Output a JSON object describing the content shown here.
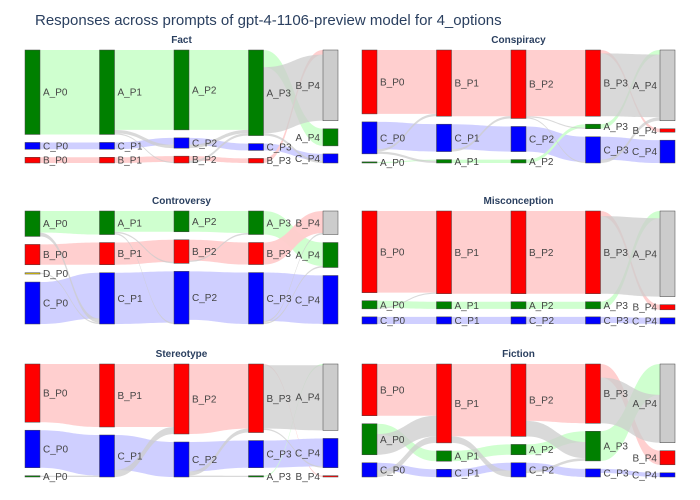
{
  "figure": {
    "title": "Responses across prompts of gpt-4-1106-preview model for 4_options"
  },
  "colors": {
    "A": "#008000",
    "B": "#ff0000",
    "C": "#0000ff",
    "D": "#e6c800",
    "link_A": "#ccffcc",
    "link_B": "#ffcccc",
    "link_C": "#ccccff",
    "link_grey": "#cccccc",
    "node_grey": "#cccccc"
  },
  "chart_data": [
    {
      "type": "sankey",
      "title": "Fact",
      "stages": [
        "P0",
        "P1",
        "P2",
        "P3",
        "P4"
      ],
      "nodes": [
        [
          {
            "label": "A_P0",
            "v": 74,
            "c": "A"
          },
          {
            "label": "C_P0",
            "v": 6,
            "c": "C"
          },
          {
            "label": "B_P0",
            "v": 5,
            "c": "B"
          }
        ],
        [
          {
            "label": "A_P1",
            "v": 74,
            "c": "A"
          },
          {
            "label": "C_P1",
            "v": 6,
            "c": "C"
          },
          {
            "label": "B_P1",
            "v": 5,
            "c": "B"
          }
        ],
        [
          {
            "label": "A_P2",
            "v": 70,
            "c": "A"
          },
          {
            "label": "C_P2",
            "v": 9,
            "c": "C"
          },
          {
            "label": "B_P2",
            "v": 6,
            "c": "B"
          }
        ],
        [
          {
            "label": "A_P3",
            "v": 75,
            "c": "A"
          },
          {
            "label": "C_P3",
            "v": 6,
            "c": "C"
          },
          {
            "label": "B_P3",
            "v": 4,
            "c": "B"
          }
        ],
        [
          {
            "label": "B_P4",
            "v": 62,
            "c": "B"
          },
          {
            "label": "A_P4",
            "v": 15,
            "c": "A"
          },
          {
            "label": "C_P4",
            "v": 8,
            "c": "C"
          }
        ]
      ]
    },
    {
      "type": "sankey",
      "title": "Conspiracy",
      "stages": [
        "P0",
        "P1",
        "P2",
        "P3",
        "P4"
      ],
      "nodes": [
        [
          {
            "label": "B_P0",
            "v": 56,
            "c": "B"
          },
          {
            "label": "C_P0",
            "v": 28,
            "c": "C"
          },
          {
            "label": "A_P0",
            "v": 1,
            "c": "A"
          }
        ],
        [
          {
            "label": "B_P1",
            "v": 58,
            "c": "B"
          },
          {
            "label": "C_P1",
            "v": 24,
            "c": "C"
          },
          {
            "label": "A_P1",
            "v": 3,
            "c": "A"
          }
        ],
        [
          {
            "label": "B_P2",
            "v": 60,
            "c": "B"
          },
          {
            "label": "C_P2",
            "v": 22,
            "c": "C"
          },
          {
            "label": "A_P2",
            "v": 3,
            "c": "A"
          }
        ],
        [
          {
            "label": "B_P3",
            "v": 58,
            "c": "B"
          },
          {
            "label": "A_P3",
            "v": 4,
            "c": "A"
          },
          {
            "label": "C_P3",
            "v": 23,
            "c": "C"
          }
        ],
        [
          {
            "label": "A_P4",
            "v": 62,
            "c": "A"
          },
          {
            "label": "B_P4",
            "v": 3,
            "c": "B"
          },
          {
            "label": "C_P4",
            "v": 20,
            "c": "C"
          }
        ]
      ]
    },
    {
      "type": "sankey",
      "title": "Controversy",
      "stages": [
        "P0",
        "P1",
        "P2",
        "P3",
        "P4"
      ],
      "nodes": [
        [
          {
            "label": "A_P0",
            "v": 20,
            "c": "A"
          },
          {
            "label": "B_P0",
            "v": 16,
            "c": "B"
          },
          {
            "label": "D_P0",
            "v": 1,
            "c": "D"
          },
          {
            "label": "C_P0",
            "v": 33,
            "c": "C"
          }
        ],
        [
          {
            "label": "A_P1",
            "v": 17,
            "c": "A"
          },
          {
            "label": "B_P1",
            "v": 16,
            "c": "B"
          },
          {
            "label": "C_P1",
            "v": 37,
            "c": "C"
          }
        ],
        [
          {
            "label": "A_P2",
            "v": 15,
            "c": "A"
          },
          {
            "label": "B_P2",
            "v": 17,
            "c": "B"
          },
          {
            "label": "C_P2",
            "v": 38,
            "c": "C"
          }
        ],
        [
          {
            "label": "A_P3",
            "v": 16,
            "c": "A"
          },
          {
            "label": "B_P3",
            "v": 15,
            "c": "B"
          },
          {
            "label": "C_P3",
            "v": 35,
            "c": "C"
          }
        ],
        [
          {
            "label": "B_P4",
            "v": 16,
            "c": "B"
          },
          {
            "label": "A_P4",
            "v": 17,
            "c": "A"
          },
          {
            "label": "C_P4",
            "v": 33,
            "c": "C"
          }
        ]
      ]
    },
    {
      "type": "sankey",
      "title": "Misconception",
      "stages": [
        "P0",
        "P1",
        "P2",
        "P3",
        "P4"
      ],
      "nodes": [
        [
          {
            "label": "B_P0",
            "v": 80,
            "c": "B"
          },
          {
            "label": "A_P0",
            "v": 8,
            "c": "A"
          },
          {
            "label": "C_P0",
            "v": 7,
            "c": "C"
          }
        ],
        [
          {
            "label": "B_P1",
            "v": 81,
            "c": "B"
          },
          {
            "label": "A_P1",
            "v": 7,
            "c": "A"
          },
          {
            "label": "C_P1",
            "v": 7,
            "c": "C"
          }
        ],
        [
          {
            "label": "B_P2",
            "v": 81,
            "c": "B"
          },
          {
            "label": "A_P2",
            "v": 7,
            "c": "A"
          },
          {
            "label": "C_P2",
            "v": 7,
            "c": "C"
          }
        ],
        [
          {
            "label": "B_P3",
            "v": 81,
            "c": "B"
          },
          {
            "label": "A_P3",
            "v": 7,
            "c": "A"
          },
          {
            "label": "C_P3",
            "v": 7,
            "c": "C"
          }
        ],
        [
          {
            "label": "A_P4",
            "v": 83,
            "c": "A"
          },
          {
            "label": "B_P4",
            "v": 5,
            "c": "B"
          },
          {
            "label": "C_P4",
            "v": 6,
            "c": "C"
          }
        ]
      ]
    },
    {
      "type": "sankey",
      "title": "Stereotype",
      "stages": [
        "P0",
        "P1",
        "P2",
        "P3",
        "P4"
      ],
      "nodes": [
        [
          {
            "label": "B_P0",
            "v": 45,
            "c": "B"
          },
          {
            "label": "C_P0",
            "v": 29,
            "c": "C"
          },
          {
            "label": "A_P0",
            "v": 1,
            "c": "A"
          }
        ],
        [
          {
            "label": "B_P1",
            "v": 45,
            "c": "B"
          },
          {
            "label": "C_P1",
            "v": 30,
            "c": "C"
          }
        ],
        [
          {
            "label": "B_P2",
            "v": 50,
            "c": "B"
          },
          {
            "label": "C_P2",
            "v": 25,
            "c": "C"
          }
        ],
        [
          {
            "label": "B_P3",
            "v": 53,
            "c": "B"
          },
          {
            "label": "C_P3",
            "v": 21,
            "c": "C"
          },
          {
            "label": "A_P3",
            "v": 1,
            "c": "A"
          }
        ],
        [
          {
            "label": "A_P4",
            "v": 50,
            "c": "A"
          },
          {
            "label": "C_P4",
            "v": 22,
            "c": "C"
          },
          {
            "label": "B_P4",
            "v": 1,
            "c": "B"
          }
        ]
      ]
    },
    {
      "type": "sankey",
      "title": "Fiction",
      "stages": [
        "P0",
        "P1",
        "P2",
        "P3",
        "P4"
      ],
      "nodes": [
        [
          {
            "label": "B_P0",
            "v": 40,
            "c": "B"
          },
          {
            "label": "A_P0",
            "v": 24,
            "c": "A"
          },
          {
            "label": "C_P0",
            "v": 11,
            "c": "C"
          }
        ],
        [
          {
            "label": "B_P1",
            "v": 61,
            "c": "B"
          },
          {
            "label": "A_P1",
            "v": 8,
            "c": "A"
          },
          {
            "label": "C_P1",
            "v": 6,
            "c": "C"
          }
        ],
        [
          {
            "label": "B_P2",
            "v": 56,
            "c": "B"
          },
          {
            "label": "A_P2",
            "v": 8,
            "c": "A"
          },
          {
            "label": "C_P2",
            "v": 11,
            "c": "C"
          }
        ],
        [
          {
            "label": "B_P3",
            "v": 44,
            "c": "B"
          },
          {
            "label": "A_P3",
            "v": 22,
            "c": "A"
          },
          {
            "label": "C_P3",
            "v": 6,
            "c": "C"
          }
        ],
        [
          {
            "label": "A_P4",
            "v": 56,
            "c": "A"
          },
          {
            "label": "B_P4",
            "v": 10,
            "c": "B"
          },
          {
            "label": "C_P4",
            "v": 3,
            "c": "C"
          }
        ]
      ]
    }
  ]
}
